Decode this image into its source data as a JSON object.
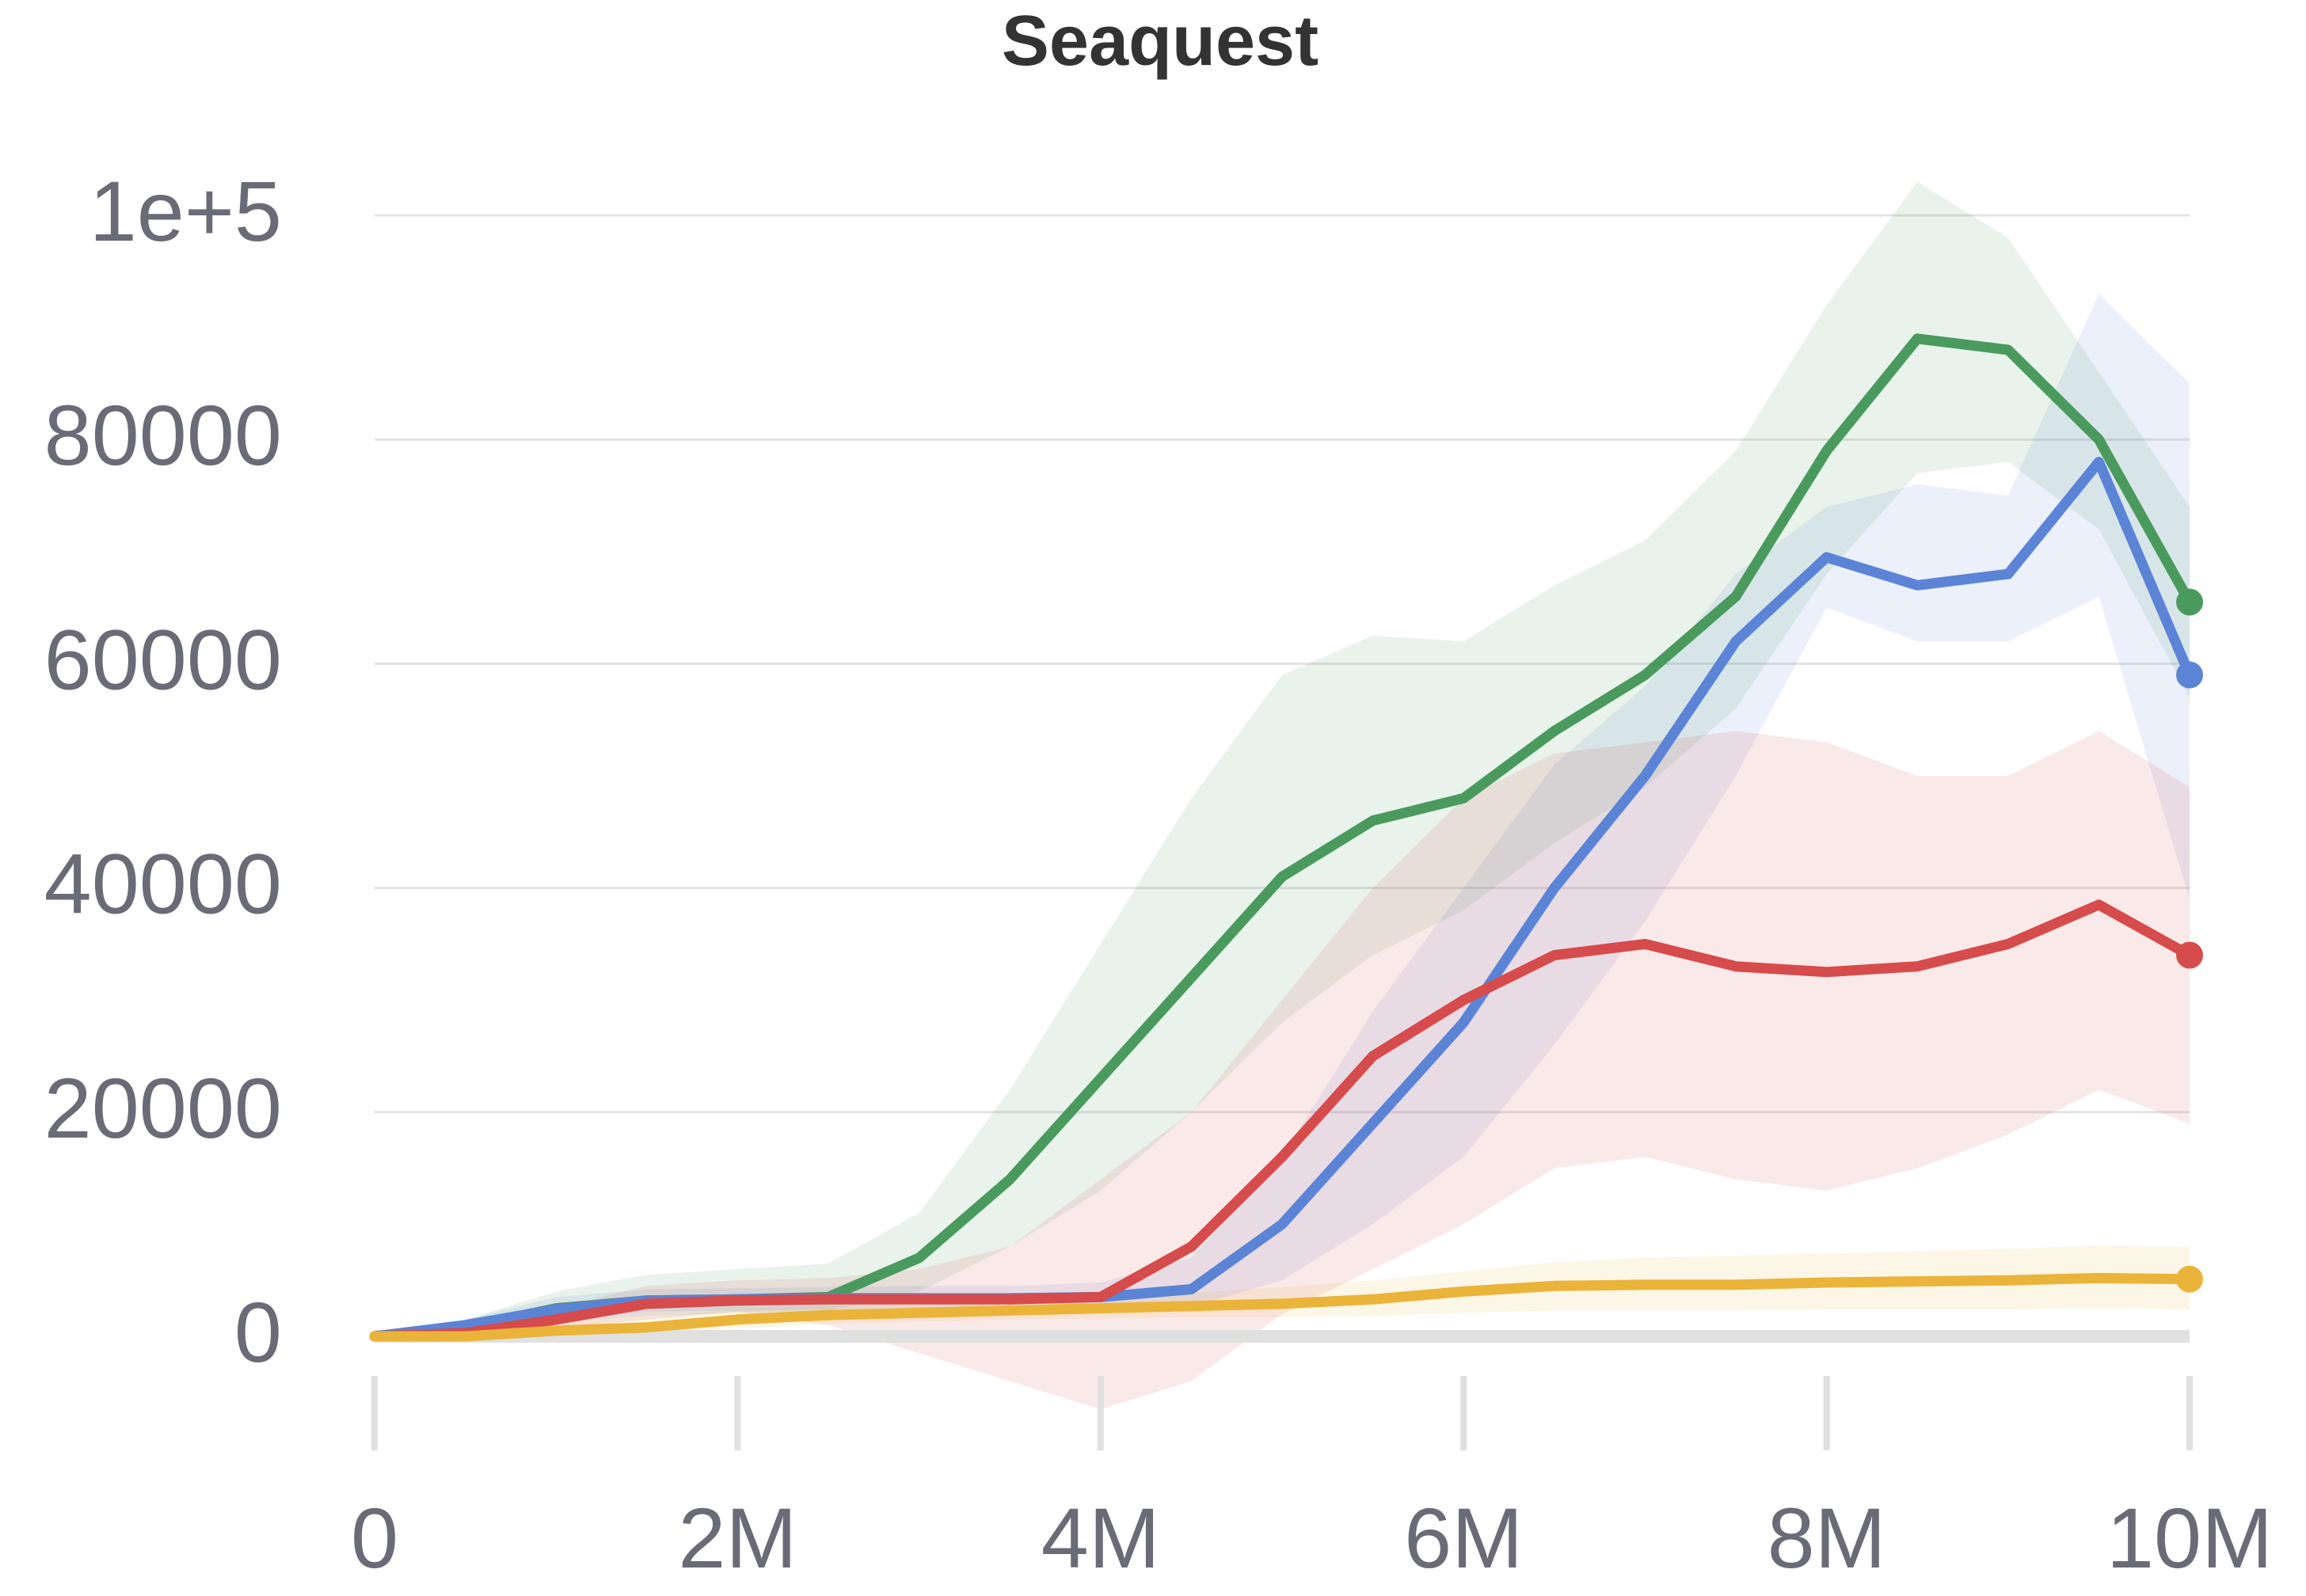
{
  "chart_data": {
    "type": "line",
    "title": "Seaquest",
    "xlabel": "",
    "ylabel": "",
    "xlim": [
      0,
      10000000
    ],
    "ylim": [
      -5000,
      105000
    ],
    "x_ticks": [
      {
        "value": 0,
        "label": "0"
      },
      {
        "value": 2000000,
        "label": "2M"
      },
      {
        "value": 4000000,
        "label": "4M"
      },
      {
        "value": 6000000,
        "label": "6M"
      },
      {
        "value": 8000000,
        "label": "8M"
      },
      {
        "value": 10000000,
        "label": "10M"
      }
    ],
    "y_ticks": [
      {
        "value": 0,
        "label": "0"
      },
      {
        "value": 20000,
        "label": "20000"
      },
      {
        "value": 40000,
        "label": "40000"
      },
      {
        "value": 60000,
        "label": "60000"
      },
      {
        "value": 80000,
        "label": "80000"
      },
      {
        "value": 100000,
        "label": "1e+5"
      }
    ],
    "grid": "horizontal",
    "legend": "none",
    "x": [
      0,
      500000,
      1000000,
      1500000,
      2000000,
      2500000,
      3000000,
      3500000,
      4000000,
      4500000,
      5000000,
      5500000,
      6000000,
      6500000,
      7000000,
      7500000,
      8000000,
      8500000,
      9000000,
      9500000,
      10000000
    ],
    "series": [
      {
        "color": "#4a9a5e",
        "values": [
          0,
          800,
          2500,
          3200,
          3300,
          3500,
          7000,
          14000,
          23000,
          32000,
          41000,
          46000,
          48000,
          54000,
          59000,
          66000,
          79000,
          89000,
          88000,
          80000,
          65500
        ],
        "band_upper": [
          0,
          1500,
          4000,
          5500,
          6000,
          6500,
          11000,
          22000,
          35000,
          48000,
          59000,
          62500,
          62000,
          67000,
          71000,
          79000,
          92000,
          103000,
          98000,
          86000,
          74000
        ],
        "band_lower": [
          0,
          300,
          1200,
          1800,
          2100,
          2300,
          4000,
          8000,
          13000,
          20000,
          28000,
          34000,
          38000,
          44000,
          49000,
          56000,
          68000,
          77000,
          78000,
          72000,
          57000
        ]
      },
      {
        "color": "#5b84d6",
        "values": [
          0,
          1000,
          2400,
          3200,
          3300,
          3400,
          3400,
          3400,
          3500,
          4200,
          10000,
          19000,
          28000,
          40000,
          50000,
          62000,
          69500,
          67000,
          68000,
          78000,
          59000
        ],
        "band_upper": [
          0,
          1500,
          3500,
          4200,
          4300,
          4400,
          4500,
          4500,
          4800,
          7000,
          16000,
          29000,
          40000,
          51000,
          58000,
          68000,
          74000,
          76000,
          75000,
          93000,
          85000
        ],
        "band_lower": [
          0,
          500,
          1300,
          2200,
          2300,
          2400,
          2400,
          2400,
          2400,
          2600,
          5000,
          10000,
          16000,
          26000,
          37000,
          50000,
          65000,
          62000,
          62000,
          66000,
          39000
        ]
      },
      {
        "color": "#d64b4b",
        "values": [
          0,
          300,
          1500,
          2900,
          3200,
          3300,
          3300,
          3300,
          3500,
          8000,
          16000,
          25000,
          30000,
          34000,
          35000,
          33000,
          32500,
          33000,
          35000,
          38500,
          34000
        ],
        "band_upper": [
          0,
          500,
          2500,
          4500,
          5000,
          5200,
          6000,
          8000,
          14000,
          20000,
          30000,
          40000,
          48000,
          52000,
          53000,
          54000,
          53000,
          50000,
          50000,
          54000,
          49000
        ],
        "band_lower": [
          0,
          100,
          600,
          1500,
          2200,
          1000,
          -1500,
          -4000,
          -6500,
          -4000,
          2000,
          6000,
          10000,
          15000,
          16000,
          14000,
          13000,
          15000,
          18000,
          22000,
          19000
        ]
      },
      {
        "color": "#eab43a",
        "values": [
          0,
          0,
          500,
          800,
          1500,
          1900,
          2100,
          2300,
          2500,
          2700,
          2900,
          3300,
          4000,
          4500,
          4600,
          4600,
          4800,
          4900,
          5000,
          5200,
          5100
        ],
        "band_upper": [
          0,
          300,
          1200,
          1700,
          2400,
          2800,
          3100,
          3300,
          3600,
          3900,
          4400,
          5000,
          5800,
          6600,
          7000,
          7200,
          7400,
          7600,
          7800,
          8100,
          8000
        ],
        "band_lower": [
          0,
          0,
          100,
          200,
          700,
          1100,
          1300,
          1500,
          1600,
          1700,
          1700,
          1800,
          2100,
          2300,
          2300,
          2300,
          2400,
          2400,
          2400,
          2500,
          2400
        ]
      }
    ]
  }
}
